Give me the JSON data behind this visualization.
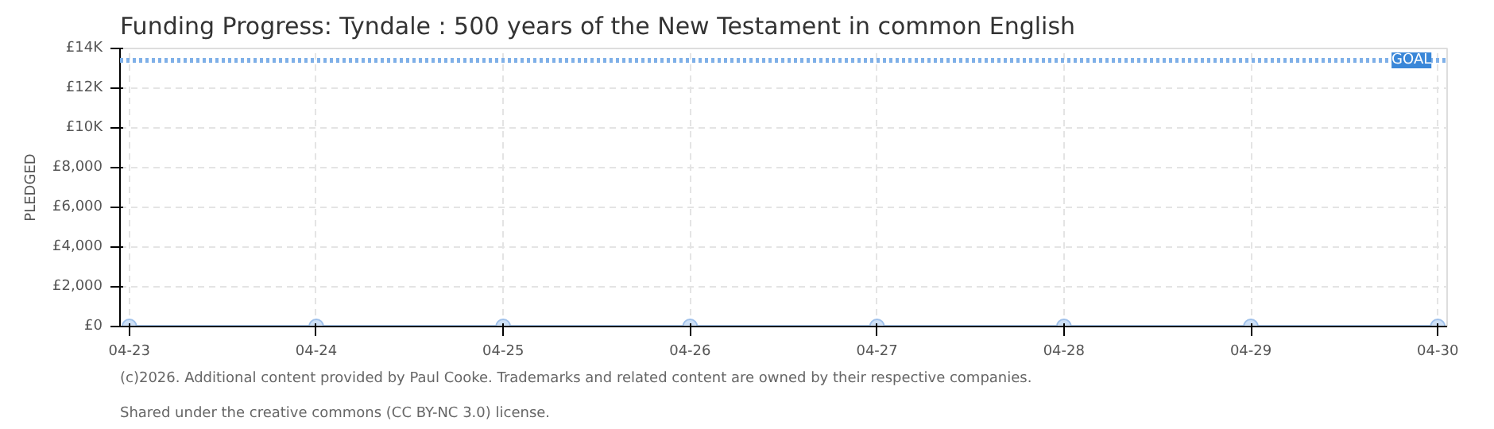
{
  "chart_data": {
    "type": "line",
    "title": "Funding Progress: Tyndale : 500 years of the New Testament in common English",
    "ylabel": "PLEDGED",
    "categories": [
      "04-23",
      "04-24",
      "04-25",
      "04-26",
      "04-27",
      "04-28",
      "04-29",
      "04-30"
    ],
    "series": [
      {
        "color": "#a8c8ee",
        "values": [
          0,
          0,
          0,
          0,
          0,
          0,
          0,
          0
        ]
      }
    ],
    "ylim": [
      0,
      14000
    ],
    "yticks": [
      {
        "value": 0,
        "label": "£0"
      },
      {
        "value": 2000,
        "label": "£2,000"
      },
      {
        "value": 4000,
        "label": "£4,000"
      },
      {
        "value": 6000,
        "label": "£6,000"
      },
      {
        "value": 8000,
        "label": "£8,000"
      },
      {
        "value": 10000,
        "label": "£10K"
      },
      {
        "value": 12000,
        "label": "£12K"
      },
      {
        "value": 14000,
        "label": "£14K"
      }
    ],
    "ref_lines": [
      {
        "axis": "y",
        "value": 13400,
        "label": "GOAL",
        "color": "#7fb0e8",
        "line_style": "dotted"
      }
    ],
    "grid": true,
    "marker": "circle",
    "annotations": [
      "(c)2026. Additional content provided by Paul Cooke. Trademarks and related content are owned by their respective companies.",
      "Shared under the creative commons (CC BY-NC 3.0) license."
    ]
  }
}
